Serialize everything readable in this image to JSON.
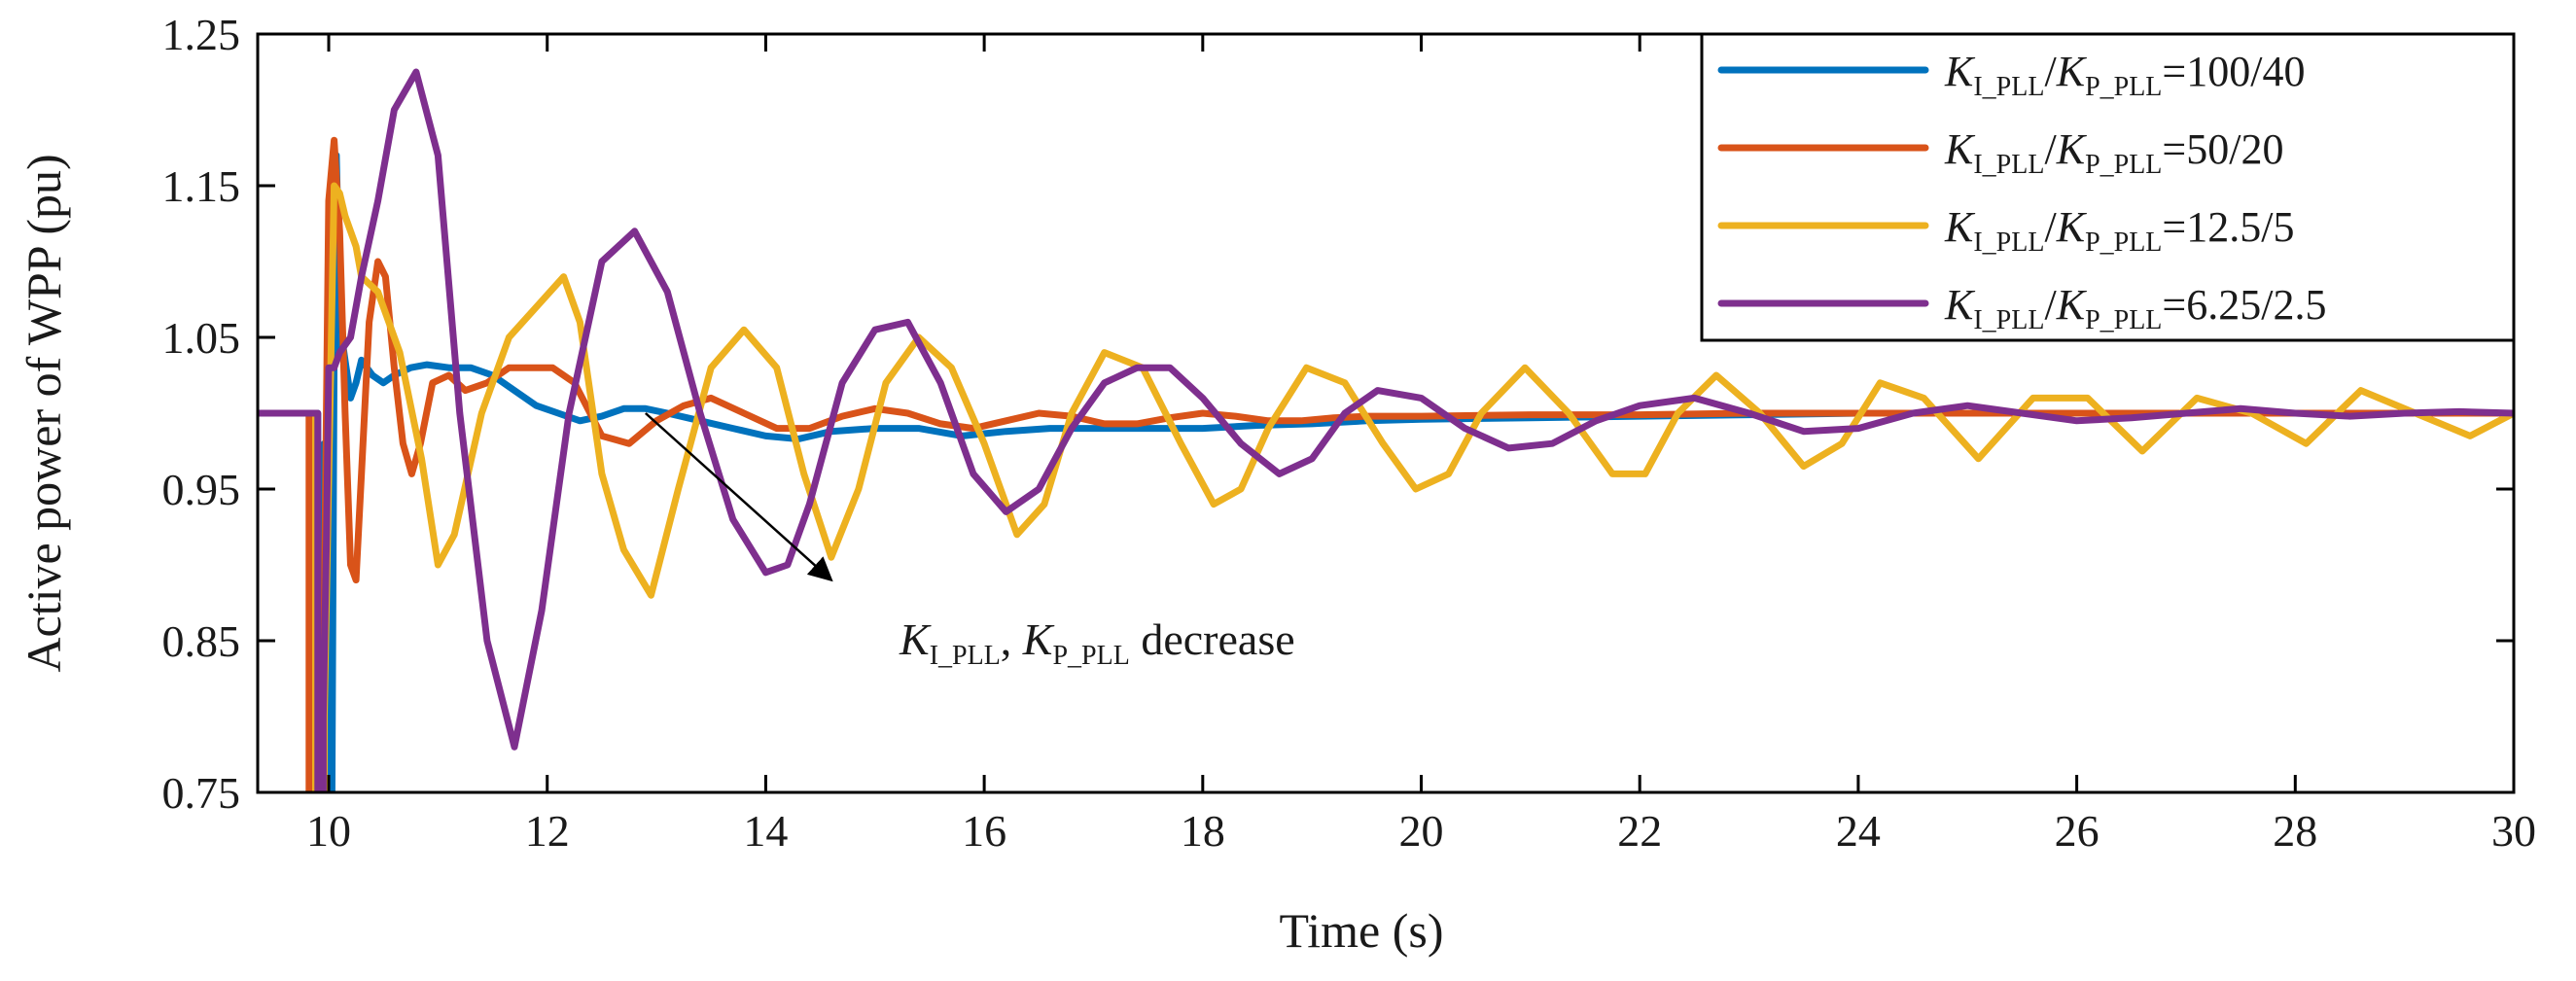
{
  "chart_data": {
    "type": "line",
    "title": "",
    "xlabel": "Time (s)",
    "ylabel": "Active power of WPP (pu)",
    "xlim": [
      9.35,
      30
    ],
    "ylim": [
      0.75,
      1.25
    ],
    "xticks": [
      10,
      12,
      14,
      16,
      18,
      20,
      22,
      24,
      26,
      28,
      30
    ],
    "yticks": [
      0.75,
      0.85,
      0.95,
      1.05,
      1.15,
      1.25
    ],
    "xtick_labels": [
      "10",
      "12",
      "14",
      "16",
      "18",
      "20",
      "22",
      "24",
      "26",
      "28",
      "30"
    ],
    "ytick_labels": [
      "0.75",
      "0.85",
      "0.95",
      "1.05",
      "1.15",
      "1.25"
    ],
    "legend_position": "top-right",
    "series": [
      {
        "name": "K_I_PLL/K_P_PLL=100/40",
        "legend_ratio": "=100/40",
        "color": "#0072BD",
        "x": [
          9.35,
          9.9,
          9.9,
          9.95,
          9.96,
          9.97,
          9.98,
          10.0,
          10.01,
          10.03,
          10.05,
          10.07,
          10.09,
          10.11,
          10.13,
          10.16,
          10.2,
          10.25,
          10.3,
          10.35,
          10.4,
          10.5,
          10.6,
          10.75,
          10.9,
          11.1,
          11.3,
          11.5,
          11.7,
          11.9,
          12.1,
          12.3,
          12.5,
          12.7,
          12.9,
          13.1,
          13.4,
          13.7,
          14.0,
          14.3,
          14.6,
          15.0,
          15.4,
          15.8,
          16.2,
          16.6,
          17.0,
          17.5,
          18.0,
          18.5,
          19.0,
          19.5,
          20.0,
          21.0,
          22.0,
          23.0,
          24.0,
          26.0,
          28.0,
          30.0
        ],
        "y": [
          1.0,
          1.0,
          0.75,
          0.75,
          0.98,
          0.75,
          0.87,
          0.75,
          1.03,
          0.75,
          1.04,
          1.17,
          1.11,
          1.04,
          1.045,
          1.03,
          1.01,
          1.02,
          1.035,
          1.03,
          1.025,
          1.02,
          1.025,
          1.03,
          1.032,
          1.03,
          1.03,
          1.025,
          1.015,
          1.005,
          1.0,
          0.995,
          0.998,
          1.003,
          1.003,
          1.0,
          0.995,
          0.99,
          0.985,
          0.983,
          0.988,
          0.99,
          0.99,
          0.985,
          0.988,
          0.99,
          0.99,
          0.99,
          0.99,
          0.992,
          0.993,
          0.995,
          0.996,
          0.997,
          0.998,
          0.999,
          1.0,
          1.0,
          1.0,
          1.0
        ]
      },
      {
        "name": "K_I_PLL/K_P_PLL=50/20",
        "legend_ratio": "=50/20",
        "color": "#D95319",
        "x": [
          9.35,
          9.82,
          9.82,
          9.87,
          9.87,
          9.94,
          9.94,
          10.0,
          10.05,
          10.1,
          10.15,
          10.2,
          10.25,
          10.3,
          10.37,
          10.45,
          10.52,
          10.6,
          10.68,
          10.76,
          10.84,
          10.95,
          11.1,
          11.25,
          11.45,
          11.65,
          11.85,
          12.05,
          12.25,
          12.5,
          12.75,
          13.0,
          13.25,
          13.5,
          13.8,
          14.1,
          14.4,
          14.7,
          15.0,
          15.3,
          15.6,
          15.9,
          16.2,
          16.5,
          16.8,
          17.1,
          17.4,
          17.7,
          18.0,
          18.3,
          18.6,
          18.9,
          19.2,
          19.5,
          20.0,
          21.0,
          22.0,
          23.0,
          24.0,
          26.0,
          28.0,
          30.0
        ],
        "y": [
          1.0,
          1.0,
          0.75,
          0.75,
          0.81,
          0.81,
          0.75,
          1.14,
          1.18,
          1.12,
          1.0,
          0.9,
          0.89,
          0.96,
          1.06,
          1.1,
          1.09,
          1.03,
          0.98,
          0.96,
          0.98,
          1.02,
          1.025,
          1.015,
          1.02,
          1.03,
          1.03,
          1.03,
          1.02,
          0.985,
          0.98,
          0.995,
          1.005,
          1.01,
          1.0,
          0.99,
          0.99,
          0.998,
          1.003,
          1.0,
          0.993,
          0.99,
          0.995,
          1.0,
          0.998,
          0.993,
          0.993,
          0.997,
          1.0,
          0.998,
          0.995,
          0.995,
          0.997,
          0.998,
          0.998,
          0.999,
          0.999,
          1.0,
          1.0,
          1.0,
          1.0,
          1.0
        ]
      },
      {
        "name": "K_I_PLL/K_P_PLL=12.5/5",
        "legend_ratio": "=12.5/5",
        "color": "#EDB120",
        "x": [
          9.35,
          9.88,
          9.88,
          9.96,
          9.96,
          10.05,
          10.1,
          10.15,
          10.2,
          10.25,
          10.3,
          10.45,
          10.65,
          10.85,
          11.0,
          11.15,
          11.4,
          11.65,
          11.9,
          12.15,
          12.3,
          12.5,
          12.7,
          12.95,
          13.2,
          13.5,
          13.8,
          14.1,
          14.35,
          14.6,
          14.85,
          15.1,
          15.4,
          15.7,
          16.0,
          16.3,
          16.55,
          16.8,
          17.1,
          17.45,
          17.8,
          18.1,
          18.35,
          18.6,
          18.95,
          19.3,
          19.65,
          19.95,
          20.25,
          20.55,
          20.95,
          21.35,
          21.75,
          22.05,
          22.35,
          22.7,
          23.1,
          23.5,
          23.85,
          24.2,
          24.6,
          25.1,
          25.6,
          26.1,
          26.6,
          27.1,
          27.6,
          28.1,
          28.6,
          29.1,
          29.6,
          30.0
        ],
        "y": [
          1.0,
          1.0,
          0.75,
          0.75,
          0.8,
          1.15,
          1.145,
          1.13,
          1.12,
          1.11,
          1.09,
          1.08,
          1.04,
          0.97,
          0.9,
          0.92,
          1.0,
          1.05,
          1.07,
          1.09,
          1.06,
          0.96,
          0.91,
          0.88,
          0.95,
          1.03,
          1.055,
          1.03,
          0.96,
          0.905,
          0.95,
          1.02,
          1.05,
          1.03,
          0.98,
          0.92,
          0.94,
          1.0,
          1.04,
          1.03,
          0.98,
          0.94,
          0.95,
          0.99,
          1.03,
          1.02,
          0.98,
          0.95,
          0.96,
          1.0,
          1.03,
          1.0,
          0.96,
          0.96,
          1.0,
          1.025,
          1.0,
          0.965,
          0.98,
          1.02,
          1.01,
          0.97,
          1.01,
          1.01,
          0.975,
          1.01,
          1.0,
          0.98,
          1.015,
          1.0,
          0.985,
          1.0
        ]
      },
      {
        "name": "K_I_PLL/K_P_PLL=6.25/2.5",
        "legend_ratio": "=6.25/2.5",
        "color": "#7E2F8E",
        "x": [
          9.35,
          9.9,
          9.9,
          9.95,
          9.95,
          9.98,
          10.0,
          10.05,
          10.1,
          10.2,
          10.3,
          10.45,
          10.6,
          10.8,
          11.0,
          11.2,
          11.45,
          11.7,
          11.95,
          12.2,
          12.5,
          12.8,
          13.1,
          13.4,
          13.7,
          14.0,
          14.2,
          14.4,
          14.7,
          15.0,
          15.3,
          15.6,
          15.9,
          16.2,
          16.5,
          16.8,
          17.1,
          17.4,
          17.7,
          18.0,
          18.35,
          18.7,
          19.0,
          19.3,
          19.6,
          20.0,
          20.4,
          20.8,
          21.2,
          21.6,
          22.0,
          22.5,
          23.0,
          23.5,
          24.0,
          24.5,
          25.0,
          25.5,
          26.0,
          26.5,
          27.0,
          27.5,
          28.0,
          28.5,
          29.0,
          29.5,
          30.0
        ],
        "y": [
          1.0,
          1.0,
          0.75,
          0.75,
          0.8,
          0.92,
          1.03,
          1.03,
          1.04,
          1.05,
          1.09,
          1.14,
          1.2,
          1.225,
          1.17,
          1.0,
          0.85,
          0.78,
          0.87,
          1.0,
          1.1,
          1.12,
          1.08,
          1.0,
          0.93,
          0.895,
          0.9,
          0.94,
          1.02,
          1.055,
          1.06,
          1.02,
          0.96,
          0.935,
          0.95,
          0.99,
          1.02,
          1.03,
          1.03,
          1.01,
          0.98,
          0.96,
          0.97,
          1.0,
          1.015,
          1.01,
          0.99,
          0.977,
          0.98,
          0.995,
          1.005,
          1.01,
          1.0,
          0.988,
          0.99,
          1.0,
          1.005,
          1.0,
          0.995,
          0.997,
          1.0,
          1.003,
          1.0,
          0.998,
          1.0,
          1.001,
          1.0
        ]
      }
    ],
    "annotation": {
      "label": "K_I_PLL, K_P_PLL decrease",
      "suffix": " decrease",
      "arrow_from": [
        12.9,
        1.0
      ],
      "arrow_to": [
        14.6,
        0.89
      ]
    }
  },
  "symbols": {
    "k": "K",
    "i_pll": "I_PLL",
    "p_pll": "P_PLL",
    "slash": "/",
    "comma": ", "
  }
}
